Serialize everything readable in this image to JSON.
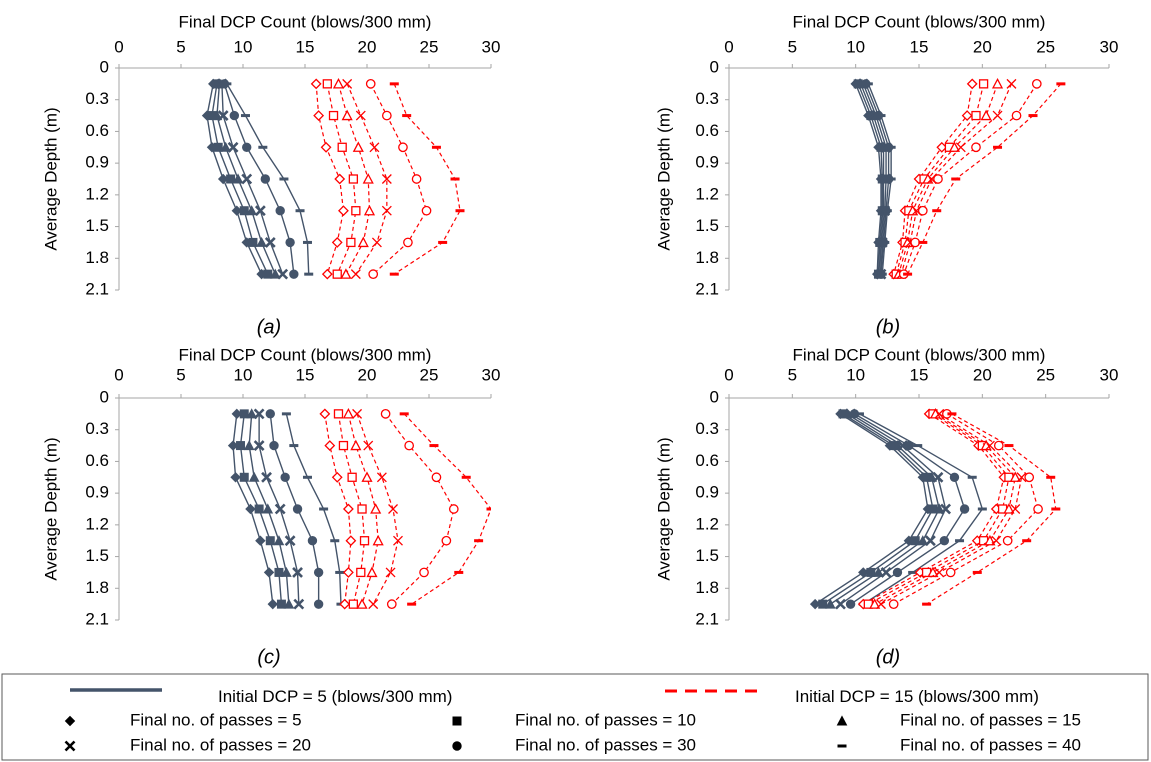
{
  "colors": {
    "initial5": "#44546a",
    "initial15": "#ff0000",
    "axis": "#a6a6a6",
    "text": "#000000"
  },
  "passes_legend": [
    {
      "passes": 5,
      "label": "Final no. of passes = 5",
      "marker": "diamond"
    },
    {
      "passes": 10,
      "label": "Final no. of passes = 10",
      "marker": "square"
    },
    {
      "passes": 15,
      "label": "Final no. of passes = 15",
      "marker": "triangle"
    },
    {
      "passes": 20,
      "label": "Final no. of passes = 20",
      "marker": "x"
    },
    {
      "passes": 30,
      "label": "Final no. of passes = 30",
      "marker": "circle"
    },
    {
      "passes": 40,
      "label": "Final no. of passes = 40",
      "marker": "dash"
    }
  ],
  "legend": {
    "initial5_label": "Initial DCP = 5 (blows/300 mm)",
    "initial15_label": "Initial DCP = 15 (blows/300 mm)"
  },
  "chart_data": [
    {
      "type": "line",
      "panel": "(a)",
      "xlabel": "Final DCP Count (blows/300 mm)",
      "ylabel": "Average Depth (m)",
      "xlim": [
        0,
        30
      ],
      "ylim": [
        0,
        2.1
      ],
      "xticks": [
        "0",
        "5",
        "10",
        "15",
        "20",
        "25",
        "30"
      ],
      "yticks": [
        "0",
        "0.3",
        "0.6",
        "0.9",
        "1.2",
        "1.5",
        "1.8",
        "2.1"
      ],
      "depths": [
        0.15,
        0.45,
        0.75,
        1.05,
        1.35,
        1.65,
        1.95
      ],
      "series": [
        {
          "initial": 5,
          "passes": 5,
          "values": [
            7.6,
            7.1,
            7.5,
            8.4,
            9.5,
            10.3,
            11.5
          ]
        },
        {
          "initial": 5,
          "passes": 10,
          "values": [
            7.9,
            7.5,
            8.0,
            9.0,
            10.1,
            10.8,
            12.0
          ]
        },
        {
          "initial": 5,
          "passes": 15,
          "values": [
            8.1,
            7.9,
            8.6,
            9.6,
            10.7,
            11.5,
            12.6
          ]
        },
        {
          "initial": 5,
          "passes": 20,
          "values": [
            8.3,
            8.4,
            9.2,
            10.3,
            11.4,
            12.2,
            13.2
          ]
        },
        {
          "initial": 5,
          "passes": 30,
          "values": [
            8.5,
            9.3,
            10.3,
            11.8,
            13.0,
            13.8,
            14.1
          ]
        },
        {
          "initial": 5,
          "passes": 40,
          "values": [
            8.7,
            10.2,
            11.6,
            13.3,
            14.6,
            15.2,
            15.3
          ]
        },
        {
          "initial": 15,
          "passes": 5,
          "values": [
            15.9,
            16.1,
            16.7,
            17.8,
            18.1,
            17.6,
            16.8
          ]
        },
        {
          "initial": 15,
          "passes": 10,
          "values": [
            16.8,
            17.3,
            18.0,
            18.9,
            19.1,
            18.7,
            17.6
          ]
        },
        {
          "initial": 15,
          "passes": 15,
          "values": [
            17.7,
            18.4,
            19.3,
            20.1,
            20.2,
            19.7,
            18.3
          ]
        },
        {
          "initial": 15,
          "passes": 20,
          "values": [
            18.4,
            19.5,
            20.6,
            21.6,
            21.6,
            20.8,
            19.1
          ]
        },
        {
          "initial": 15,
          "passes": 30,
          "values": [
            20.3,
            21.6,
            22.9,
            24.0,
            24.8,
            23.3,
            20.5
          ]
        },
        {
          "initial": 15,
          "passes": 40,
          "values": [
            22.2,
            23.2,
            25.6,
            27.1,
            27.5,
            26.1,
            22.2
          ]
        }
      ],
      "caption": "(a)"
    },
    {
      "type": "line",
      "panel": "(b)",
      "xlabel": "Final DCP Count (blows/300 mm)",
      "ylabel": "Average Depth (m)",
      "xlim": [
        0,
        30
      ],
      "ylim": [
        0,
        2.1
      ],
      "xticks": [
        "0",
        "5",
        "10",
        "15",
        "20",
        "25",
        "30"
      ],
      "yticks": [
        "0",
        "0.3",
        "0.6",
        "0.9",
        "1.2",
        "1.5",
        "1.8",
        "2.1"
      ],
      "depths": [
        0.15,
        0.45,
        0.75,
        1.05,
        1.35,
        1.65,
        1.95
      ],
      "series": [
        {
          "initial": 5,
          "passes": 5,
          "values": [
            10.0,
            11.0,
            11.8,
            12.0,
            12.0,
            11.8,
            11.7
          ]
        },
        {
          "initial": 5,
          "passes": 10,
          "values": [
            10.2,
            11.2,
            12.0,
            12.1,
            12.1,
            11.9,
            11.8
          ]
        },
        {
          "initial": 5,
          "passes": 15,
          "values": [
            10.4,
            11.4,
            12.2,
            12.2,
            12.2,
            12.0,
            11.9
          ]
        },
        {
          "initial": 5,
          "passes": 20,
          "values": [
            10.6,
            11.6,
            12.4,
            12.4,
            12.3,
            12.1,
            12.0
          ]
        },
        {
          "initial": 5,
          "passes": 30,
          "values": [
            10.8,
            11.8,
            12.6,
            12.6,
            12.4,
            12.2,
            12.0
          ]
        },
        {
          "initial": 5,
          "passes": 40,
          "values": [
            11.0,
            12.0,
            12.8,
            12.8,
            12.5,
            12.3,
            12.1
          ]
        },
        {
          "initial": 15,
          "passes": 5,
          "values": [
            19.2,
            18.8,
            16.8,
            15.0,
            13.9,
            13.7,
            13.0
          ]
        },
        {
          "initial": 15,
          "passes": 10,
          "values": [
            20.1,
            19.5,
            17.4,
            15.4,
            14.2,
            13.9,
            13.2
          ]
        },
        {
          "initial": 15,
          "passes": 15,
          "values": [
            21.2,
            20.3,
            17.8,
            15.7,
            14.5,
            14.1,
            13.4
          ]
        },
        {
          "initial": 15,
          "passes": 20,
          "values": [
            22.3,
            21.2,
            18.3,
            16.0,
            14.8,
            14.3,
            13.6
          ]
        },
        {
          "initial": 15,
          "passes": 30,
          "values": [
            24.3,
            22.7,
            19.5,
            16.5,
            15.3,
            14.7,
            13.8
          ]
        },
        {
          "initial": 15,
          "passes": 40,
          "values": [
            26.2,
            24.0,
            21.2,
            17.9,
            16.4,
            15.3,
            14.1
          ]
        }
      ],
      "caption": "(b)"
    },
    {
      "type": "line",
      "panel": "(c)",
      "xlabel": "Final DCP Count (blows/300 mm)",
      "ylabel": "Average Depth (m)",
      "xlim": [
        0,
        30
      ],
      "ylim": [
        0,
        2.1
      ],
      "xticks": [
        "0",
        "5",
        "10",
        "15",
        "20",
        "25",
        "30"
      ],
      "yticks": [
        "0",
        "0.3",
        "0.6",
        "0.9",
        "1.2",
        "1.5",
        "1.8",
        "2.1"
      ],
      "depths": [
        0.15,
        0.45,
        0.75,
        1.05,
        1.35,
        1.65,
        1.95
      ],
      "series": [
        {
          "initial": 5,
          "passes": 5,
          "values": [
            9.5,
            9.2,
            9.4,
            10.6,
            11.4,
            12.1,
            12.4
          ]
        },
        {
          "initial": 5,
          "passes": 10,
          "values": [
            10.1,
            9.8,
            10.1,
            11.3,
            12.2,
            12.9,
            13.1
          ]
        },
        {
          "initial": 5,
          "passes": 15,
          "values": [
            10.7,
            10.5,
            10.9,
            12.0,
            12.9,
            13.5,
            13.7
          ]
        },
        {
          "initial": 5,
          "passes": 20,
          "values": [
            11.3,
            11.3,
            11.9,
            13.0,
            13.8,
            14.4,
            14.5
          ]
        },
        {
          "initial": 5,
          "passes": 30,
          "values": [
            12.2,
            12.5,
            13.4,
            14.4,
            15.6,
            16.1,
            16.1
          ]
        },
        {
          "initial": 5,
          "passes": 40,
          "values": [
            13.5,
            14.1,
            15.2,
            16.5,
            17.4,
            17.8,
            17.9
          ]
        },
        {
          "initial": 15,
          "passes": 5,
          "values": [
            16.6,
            17.0,
            17.6,
            18.5,
            18.7,
            18.5,
            18.2
          ]
        },
        {
          "initial": 15,
          "passes": 10,
          "values": [
            17.7,
            18.1,
            18.8,
            19.6,
            19.8,
            19.5,
            18.9
          ]
        },
        {
          "initial": 15,
          "passes": 15,
          "values": [
            18.5,
            19.1,
            20.0,
            20.7,
            20.9,
            20.4,
            19.6
          ]
        },
        {
          "initial": 15,
          "passes": 20,
          "values": [
            19.2,
            20.1,
            21.2,
            22.1,
            22.5,
            21.9,
            20.5
          ]
        },
        {
          "initial": 15,
          "passes": 30,
          "values": [
            21.5,
            23.4,
            25.6,
            27.0,
            26.4,
            24.6,
            22.0
          ]
        },
        {
          "initial": 15,
          "passes": 40,
          "values": [
            23.0,
            25.4,
            28.0,
            30.0,
            29.0,
            27.4,
            23.6
          ]
        }
      ],
      "caption": "(c)"
    },
    {
      "type": "line",
      "panel": "(d)",
      "xlabel": "Final DCP Count (blows/300 mm)",
      "ylabel": "Average Depth (m)",
      "xlim": [
        0,
        30
      ],
      "ylim": [
        0,
        2.1
      ],
      "xticks": [
        "0",
        "5",
        "10",
        "15",
        "20",
        "25",
        "30"
      ],
      "yticks": [
        "0",
        "0.3",
        "0.6",
        "0.9",
        "1.2",
        "1.5",
        "1.8",
        "2.1"
      ],
      "depths": [
        0.15,
        0.45,
        0.75,
        1.05,
        1.35,
        1.65,
        1.95
      ],
      "series": [
        {
          "initial": 5,
          "passes": 5,
          "values": [
            8.8,
            12.7,
            15.3,
            15.7,
            14.2,
            10.6,
            6.8
          ]
        },
        {
          "initial": 5,
          "passes": 10,
          "values": [
            9.0,
            13.0,
            15.6,
            16.1,
            14.7,
            11.2,
            7.4
          ]
        },
        {
          "initial": 5,
          "passes": 15,
          "values": [
            9.3,
            13.3,
            16.0,
            16.6,
            15.3,
            11.8,
            8.0
          ]
        },
        {
          "initial": 5,
          "passes": 20,
          "values": [
            9.6,
            13.7,
            16.5,
            17.1,
            15.9,
            12.4,
            8.8
          ]
        },
        {
          "initial": 5,
          "passes": 30,
          "values": [
            9.9,
            14.2,
            17.8,
            18.6,
            17.0,
            13.3,
            9.6
          ]
        },
        {
          "initial": 5,
          "passes": 40,
          "values": [
            10.3,
            14.9,
            19.2,
            20.0,
            18.2,
            14.5,
            10.6
          ]
        },
        {
          "initial": 15,
          "passes": 5,
          "values": [
            15.8,
            19.7,
            21.7,
            21.1,
            19.6,
            15.1,
            10.6
          ]
        },
        {
          "initial": 15,
          "passes": 10,
          "values": [
            16.1,
            20.0,
            22.1,
            21.6,
            20.1,
            15.6,
            11.0
          ]
        },
        {
          "initial": 15,
          "passes": 15,
          "values": [
            16.3,
            20.3,
            22.6,
            22.1,
            20.6,
            16.1,
            11.5
          ]
        },
        {
          "initial": 15,
          "passes": 20,
          "values": [
            16.6,
            20.6,
            23.1,
            22.6,
            21.1,
            16.6,
            12.0
          ]
        },
        {
          "initial": 15,
          "passes": 30,
          "values": [
            17.2,
            21.3,
            23.7,
            24.4,
            22.0,
            17.5,
            13.0
          ]
        },
        {
          "initial": 15,
          "passes": 40,
          "values": [
            17.6,
            22.1,
            25.4,
            25.8,
            23.5,
            19.6,
            15.6
          ]
        }
      ],
      "caption": "(d)"
    }
  ]
}
